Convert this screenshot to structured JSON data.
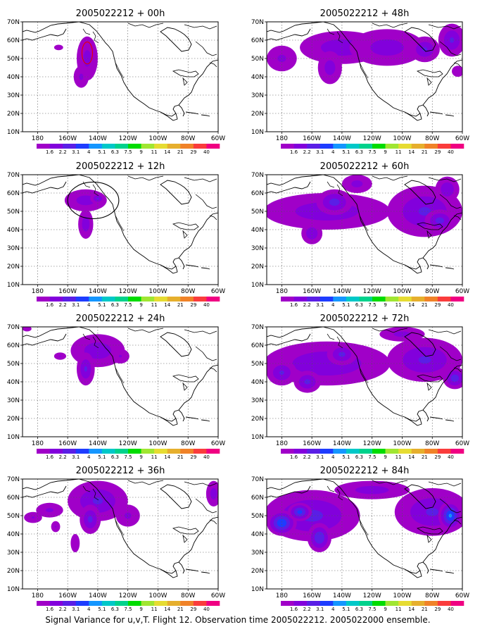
{
  "caption": "Signal Variance for u,v,T. Flight 12. Observation time 2005022212. 2005022000 ensemble.",
  "axes": {
    "lat_labels": [
      "70N",
      "60N",
      "50N",
      "40N",
      "30N",
      "20N",
      "10N"
    ],
    "lon_labels": [
      "180",
      "160W",
      "140W",
      "120W",
      "100W",
      "80W",
      "60W"
    ],
    "lat_range": [
      10,
      70
    ],
    "lon_range": [
      -190,
      -60
    ],
    "grid": "dotted"
  },
  "colorbar": {
    "labels": [
      "1.6",
      "2.2",
      "3.1",
      "4",
      "5.1",
      "6.3",
      "7.5",
      "9",
      "11",
      "14",
      "21",
      "29",
      "40"
    ],
    "colors": [
      "#a000c8",
      "#8200dc",
      "#5a1ee6",
      "#1e3cff",
      "#1496ff",
      "#00c8c8",
      "#00d28c",
      "#00dc00",
      "#a0e632",
      "#e6dc32",
      "#e6af2d",
      "#f08228",
      "#fa3c3c",
      "#f00082"
    ]
  },
  "fill_levels": [
    "#a000c8",
    "#8200dc",
    "#5a1ee6",
    "#1e3cff",
    "#1496ff",
    "#00c8c8",
    "#00d28c"
  ],
  "panels": [
    {
      "title": "2005022212 + 00h",
      "blobs": [
        {
          "lon": -147,
          "lat": 50,
          "rx": 7,
          "ry": 12,
          "v": 1.6
        },
        {
          "lon": -151,
          "lat": 40,
          "rx": 5,
          "ry": 6,
          "v": 1.4
        },
        {
          "lon": -166,
          "lat": 56,
          "rx": 3,
          "ry": 1.5,
          "v": 1.1
        }
      ],
      "contours": [
        {
          "lon": -147,
          "lat": 53,
          "rx": 3.5,
          "ry": 6,
          "color": "#e60000"
        }
      ]
    },
    {
      "title": "2005022212 + 12h",
      "blobs": [
        {
          "lon": -148,
          "lat": 56,
          "rx": 14,
          "ry": 6,
          "v": 1.8
        },
        {
          "lon": -148,
          "lat": 43,
          "rx": 5,
          "ry": 8,
          "v": 2.0
        },
        {
          "lon": -140,
          "lat": 57,
          "rx": 5,
          "ry": 3,
          "v": 2.4
        }
      ],
      "contours": [
        {
          "lon": -143,
          "lat": 56,
          "rx": 17,
          "ry": 10,
          "color": "#000000"
        }
      ]
    },
    {
      "title": "2005022212 + 24h",
      "blobs": [
        {
          "lon": -140,
          "lat": 57,
          "rx": 18,
          "ry": 9,
          "v": 2.0
        },
        {
          "lon": -148,
          "lat": 47,
          "rx": 6,
          "ry": 9,
          "v": 2.4
        },
        {
          "lon": -165,
          "lat": 54,
          "rx": 4,
          "ry": 2,
          "v": 1.2
        },
        {
          "lon": -125,
          "lat": 54,
          "rx": 6,
          "ry": 4,
          "v": 1.2
        },
        {
          "lon": -187,
          "lat": 69,
          "rx": 3,
          "ry": 1.5,
          "v": 1.1
        }
      ],
      "contours": []
    },
    {
      "title": "2005022212 + 36h",
      "blobs": [
        {
          "lon": -140,
          "lat": 58,
          "rx": 20,
          "ry": 11,
          "v": 2.4
        },
        {
          "lon": -145,
          "lat": 48,
          "rx": 7,
          "ry": 8,
          "v": 2.6
        },
        {
          "lon": -172,
          "lat": 53,
          "rx": 9,
          "ry": 4,
          "v": 1.4
        },
        {
          "lon": -168,
          "lat": 44,
          "rx": 3,
          "ry": 3,
          "v": 1.2
        },
        {
          "lon": -183,
          "lat": 49,
          "rx": 6,
          "ry": 3,
          "v": 1.2
        },
        {
          "lon": -155,
          "lat": 35,
          "rx": 3,
          "ry": 5,
          "v": 1.1
        },
        {
          "lon": -63,
          "lat": 62,
          "rx": 5,
          "ry": 7,
          "v": 1.8
        },
        {
          "lon": -120,
          "lat": 50,
          "rx": 8,
          "ry": 6,
          "v": 1.4
        }
      ],
      "contours": []
    },
    {
      "title": "2005022212 + 48h",
      "blobs": [
        {
          "lon": -140,
          "lat": 56,
          "rx": 28,
          "ry": 9,
          "v": 2.0
        },
        {
          "lon": -148,
          "lat": 45,
          "rx": 8,
          "ry": 9,
          "v": 1.8
        },
        {
          "lon": -180,
          "lat": 50,
          "rx": 10,
          "ry": 7,
          "v": 1.4
        },
        {
          "lon": -110,
          "lat": 56,
          "rx": 25,
          "ry": 10,
          "v": 1.8
        },
        {
          "lon": -85,
          "lat": 55,
          "rx": 10,
          "ry": 7,
          "v": 2.4
        },
        {
          "lon": -67,
          "lat": 60,
          "rx": 9,
          "ry": 9,
          "v": 2.4
        },
        {
          "lon": -63,
          "lat": 43,
          "rx": 4,
          "ry": 3,
          "v": 1.1
        }
      ],
      "contours": []
    },
    {
      "title": "2005022212 + 60h",
      "blobs": [
        {
          "lon": -150,
          "lat": 50,
          "rx": 42,
          "ry": 10,
          "v": 2.0
        },
        {
          "lon": -145,
          "lat": 55,
          "rx": 12,
          "ry": 7,
          "v": 2.8
        },
        {
          "lon": -160,
          "lat": 38,
          "rx": 7,
          "ry": 6,
          "v": 2.2
        },
        {
          "lon": -85,
          "lat": 50,
          "rx": 25,
          "ry": 14,
          "v": 2.4
        },
        {
          "lon": -75,
          "lat": 45,
          "rx": 10,
          "ry": 6,
          "v": 2.8
        },
        {
          "lon": -130,
          "lat": 65,
          "rx": 10,
          "ry": 5,
          "v": 1.6
        },
        {
          "lon": -70,
          "lat": 62,
          "rx": 8,
          "ry": 7,
          "v": 2.2
        }
      ],
      "contours": []
    },
    {
      "title": "2005022212 + 72h",
      "blobs": [
        {
          "lon": -150,
          "lat": 50,
          "rx": 42,
          "ry": 12,
          "v": 2.2
        },
        {
          "lon": -163,
          "lat": 40,
          "rx": 9,
          "ry": 6,
          "v": 2.6
        },
        {
          "lon": -180,
          "lat": 45,
          "rx": 10,
          "ry": 7,
          "v": 2.4
        },
        {
          "lon": -140,
          "lat": 55,
          "rx": 10,
          "ry": 6,
          "v": 2.6
        },
        {
          "lon": -85,
          "lat": 52,
          "rx": 25,
          "ry": 12,
          "v": 2.4
        },
        {
          "lon": -65,
          "lat": 42,
          "rx": 8,
          "ry": 6,
          "v": 3.0
        },
        {
          "lon": -100,
          "lat": 66,
          "rx": 15,
          "ry": 4,
          "v": 1.6
        }
      ],
      "contours": []
    },
    {
      "title": "2005022212 + 84h",
      "blobs": [
        {
          "lon": -160,
          "lat": 50,
          "rx": 32,
          "ry": 14,
          "v": 2.6
        },
        {
          "lon": -180,
          "lat": 46,
          "rx": 10,
          "ry": 7,
          "v": 4.4
        },
        {
          "lon": -155,
          "lat": 38,
          "rx": 8,
          "ry": 8,
          "v": 3.4
        },
        {
          "lon": -168,
          "lat": 52,
          "rx": 8,
          "ry": 5,
          "v": 3.8
        },
        {
          "lon": -80,
          "lat": 52,
          "rx": 25,
          "ry": 13,
          "v": 2.4
        },
        {
          "lon": -68,
          "lat": 50,
          "rx": 8,
          "ry": 8,
          "v": 4.6
        },
        {
          "lon": -120,
          "lat": 64,
          "rx": 25,
          "ry": 5,
          "v": 1.8
        }
      ],
      "contours": []
    }
  ]
}
